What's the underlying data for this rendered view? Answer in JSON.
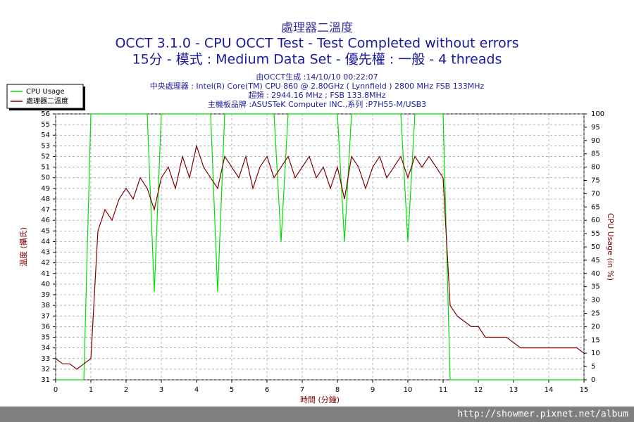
{
  "chart_data": {
    "type": "line",
    "title": "處理器二溫度",
    "subtitle": [
      "OCCT 3.1.0 - CPU OCCT Test - Test Completed without errors",
      "15分 - 模式 : Medium Data Set - 優先權 : 一般 - 4 threads"
    ],
    "info": [
      "由OCCT生成 :14/10/10 00:22:07",
      "中央處理器 : Intel(R) Core(TM) CPU 860 @ 2.80GHz ( Lynnfield ) 2800 MHz FSB 133MHz",
      "超頻 : 2944.16 MHz ; FSB 133.8MHz",
      "主機板品牌 :ASUSTeK Computer INC.,系列 :P7H55-M/USB3"
    ],
    "x_label": "時間 (分鐘)",
    "y_label": "溫度 (攝氏)",
    "y2_label": "CPU Usage (in %)",
    "x": [
      0,
      0.2,
      0.4,
      0.6,
      0.8,
      1,
      1.2,
      1.4,
      1.6,
      1.8,
      2,
      2.2,
      2.4,
      2.6,
      2.8,
      3,
      3.2,
      3.4,
      3.6,
      3.8,
      4,
      4.2,
      4.4,
      4.6,
      4.8,
      5,
      5.2,
      5.4,
      5.6,
      5.8,
      6,
      6.2,
      6.4,
      6.6,
      6.8,
      7,
      7.2,
      7.4,
      7.6,
      7.8,
      8,
      8.2,
      8.4,
      8.6,
      8.8,
      9,
      9.2,
      9.4,
      9.6,
      9.8,
      10,
      10.2,
      10.4,
      10.6,
      10.8,
      11,
      11.2,
      11.4,
      11.6,
      11.8,
      12,
      12.2,
      12.4,
      12.6,
      12.8,
      13,
      13.2,
      13.4,
      13.6,
      13.8,
      14,
      14.2,
      14.4,
      14.6,
      14.8,
      15
    ],
    "xlim": [
      0,
      15
    ],
    "xticks": [
      0,
      1,
      2,
      3,
      4,
      5,
      6,
      7,
      8,
      9,
      10,
      11,
      12,
      13,
      14,
      15
    ],
    "ylim": [
      31,
      56
    ],
    "yticks": [
      31,
      32,
      33,
      34,
      35,
      36,
      37,
      38,
      39,
      40,
      41,
      42,
      43,
      44,
      45,
      46,
      47,
      48,
      49,
      50,
      51,
      52,
      53,
      54,
      55,
      56
    ],
    "y2lim": [
      0,
      100
    ],
    "y2ticks": [
      0,
      5,
      10,
      15,
      20,
      25,
      30,
      35,
      40,
      45,
      50,
      55,
      60,
      65,
      70,
      75,
      80,
      85,
      90,
      95,
      100
    ],
    "grid": true,
    "legend": "upper left",
    "series": [
      {
        "name": "CPU Usage",
        "color": "#00dd00",
        "axis": "y2",
        "values": [
          0,
          0,
          0,
          0,
          0,
          100,
          100,
          100,
          100,
          100,
          100,
          100,
          100,
          100,
          33,
          100,
          100,
          100,
          100,
          100,
          100,
          100,
          100,
          33,
          100,
          100,
          100,
          100,
          100,
          100,
          100,
          100,
          52,
          100,
          100,
          100,
          100,
          100,
          100,
          100,
          100,
          52,
          100,
          100,
          100,
          100,
          100,
          100,
          100,
          100,
          52,
          100,
          100,
          100,
          100,
          100,
          0,
          0,
          0,
          0,
          0,
          0,
          0,
          0,
          0,
          0,
          0,
          0,
          0,
          0,
          0,
          0,
          0,
          0,
          0,
          0
        ]
      },
      {
        "name": "處理器二溫度",
        "color": "#800000",
        "values": [
          33,
          32.5,
          32.5,
          32,
          32.5,
          33,
          45,
          47,
          46,
          48,
          49,
          48,
          50,
          49,
          47,
          50,
          51,
          49,
          52,
          50,
          53,
          51,
          50,
          49,
          52,
          51,
          50,
          52,
          49,
          51,
          52,
          50,
          51,
          52,
          50,
          51,
          52,
          50,
          51,
          49,
          51,
          48,
          52,
          51,
          49,
          51,
          52,
          50,
          51,
          52,
          50,
          52,
          51,
          52,
          51,
          50,
          38,
          37,
          36.5,
          36,
          36,
          35,
          35,
          35,
          35,
          34.5,
          34,
          34,
          34,
          34,
          34,
          34,
          34,
          34,
          34,
          33.5
        ]
      }
    ]
  },
  "footer": "http://showmer.pixnet.net/album"
}
